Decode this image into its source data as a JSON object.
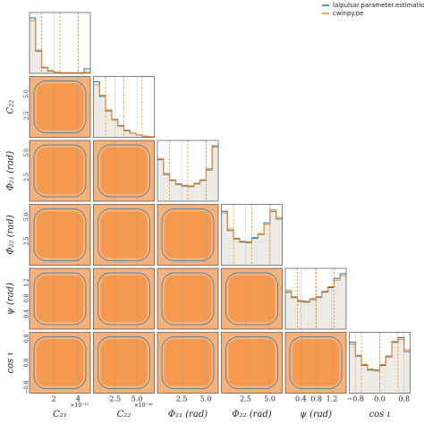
{
  "chart_data": {
    "type": "corner",
    "series": [
      {
        "name": "lalpulsar.parameter.estimation.nested",
        "color": "#1f77b4"
      },
      {
        "name": "cwinpy.pe",
        "color": "#ff7f0e"
      }
    ],
    "parameters": [
      {
        "label": "C₂₁",
        "offset": "×10⁻²⁵",
        "lim": [
          0,
          5
        ],
        "ticks": [
          2,
          4
        ],
        "hist": [
          [
            100,
            40,
            10,
            4,
            2,
            1,
            1,
            1,
            1,
            8
          ],
          [
            95,
            42,
            11,
            5,
            2,
            1,
            1,
            1,
            1,
            2
          ]
        ]
      },
      {
        "label": "C₂₂",
        "offset": "×10⁻²⁶",
        "lim": [
          0,
          7
        ],
        "ticks": [
          2.5,
          {
            "value": 5,
            "label": "5.0"
          }
        ],
        "hist": [
          [
            95,
            70,
            45,
            30,
            20,
            12,
            7,
            4,
            2,
            1
          ],
          [
            90,
            72,
            47,
            31,
            19,
            11,
            7,
            4,
            2,
            1
          ]
        ]
      },
      {
        "label": "Φ₂₁ (rad)",
        "lim": [
          0,
          6.28
        ],
        "ticks": [
          2.5,
          {
            "value": 5,
            "label": "5.0"
          }
        ],
        "hist": [
          [
            60,
            40,
            30,
            25,
            22,
            22,
            25,
            30,
            45,
            80
          ],
          [
            62,
            38,
            31,
            24,
            23,
            21,
            26,
            31,
            47,
            78
          ]
        ]
      },
      {
        "label": "Φ₂₂ (rad)",
        "lim": [
          0,
          6.28
        ],
        "ticks": [
          2.5,
          {
            "value": 5,
            "label": "5.0"
          }
        ],
        "hist": [
          [
            70,
            45,
            35,
            30,
            30,
            35,
            40,
            55,
            70,
            60
          ],
          [
            68,
            47,
            34,
            31,
            29,
            36,
            41,
            53,
            72,
            62
          ]
        ]
      },
      {
        "label": "ψ (rad)",
        "lim": [
          0,
          1.57
        ],
        "ticks": [
          0.4,
          0.8,
          1.2
        ],
        "hist": [
          [
            40,
            35,
            30,
            30,
            32,
            35,
            40,
            45,
            55,
            60
          ],
          [
            42,
            34,
            31,
            29,
            33,
            34,
            41,
            46,
            53,
            58
          ]
        ]
      },
      {
        "label": "cos ι",
        "lim": [
          -1,
          1
        ],
        "ticks": [
          {
            "value": -0.8,
            "label": "−0.8"
          },
          {
            "value": 0,
            "label": "0.0"
          },
          {
            "value": 0.8,
            "label": "0.8"
          }
        ],
        "hist": [
          [
            55,
            40,
            30,
            25,
            25,
            30,
            40,
            55,
            60,
            45
          ],
          [
            53,
            41,
            31,
            26,
            24,
            31,
            39,
            56,
            58,
            47
          ]
        ]
      }
    ]
  }
}
